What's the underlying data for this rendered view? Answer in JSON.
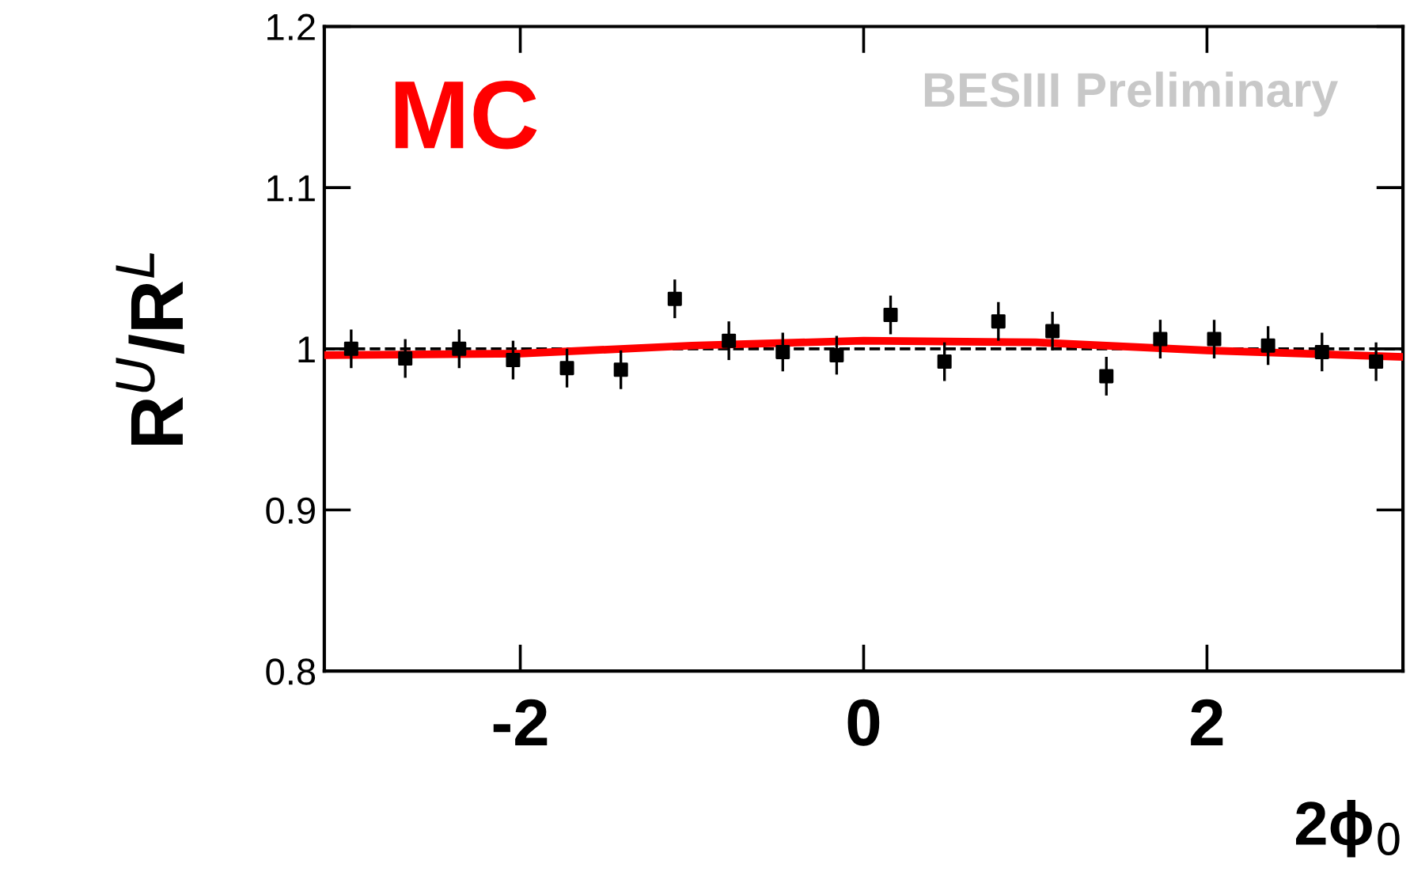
{
  "chart_data": {
    "type": "scatter",
    "xlabel": "2ϕ$_{0}$",
    "ylabel": "R$^{U}$/R$^{L}$",
    "xlim": [
      -3.1416,
      3.1416
    ],
    "xticks": [
      -2,
      0,
      2
    ],
    "ylim": [
      0.8,
      1.2
    ],
    "yticks": [
      0.8,
      0.9,
      1,
      1.1,
      1.2
    ],
    "grid": false,
    "legend": false,
    "annotations": [
      "MC",
      "BESIII Preliminary"
    ],
    "ref_lines": [
      {
        "axis": "y",
        "value": 1,
        "label": null,
        "color": "#000000",
        "line_style": "dashed"
      }
    ],
    "series": [
      {
        "type": "scatter",
        "color": "#000000",
        "marker": "square",
        "x": [
          -2.985,
          -2.67,
          -2.356,
          -2.042,
          -1.728,
          -1.414,
          -1.1,
          -0.785,
          -0.471,
          -0.157,
          0.157,
          0.471,
          0.785,
          1.1,
          1.414,
          1.728,
          2.042,
          2.356,
          2.67,
          2.985
        ],
        "values": [
          1.0,
          0.994,
          1.0,
          0.993,
          0.988,
          0.987,
          1.031,
          1.005,
          0.998,
          0.996,
          1.021,
          0.992,
          1.017,
          1.011,
          0.983,
          1.006,
          1.006,
          1.002,
          0.998,
          0.992
        ],
        "errors": [
          0.012,
          0.012,
          0.012,
          0.012,
          0.012,
          0.012,
          0.012,
          0.012,
          0.012,
          0.012,
          0.012,
          0.012,
          0.012,
          0.012,
          0.012,
          0.012,
          0.012,
          0.012,
          0.012,
          0.012
        ]
      },
      {
        "type": "line",
        "color": "#ff0000",
        "line_style": "solid",
        "marker": "none",
        "x": [
          -3.1416,
          -2,
          -1,
          0,
          1,
          2,
          3.1416
        ],
        "values": [
          0.996,
          0.997,
          1.002,
          1.005,
          1.004,
          0.999,
          0.995
        ]
      }
    ]
  }
}
